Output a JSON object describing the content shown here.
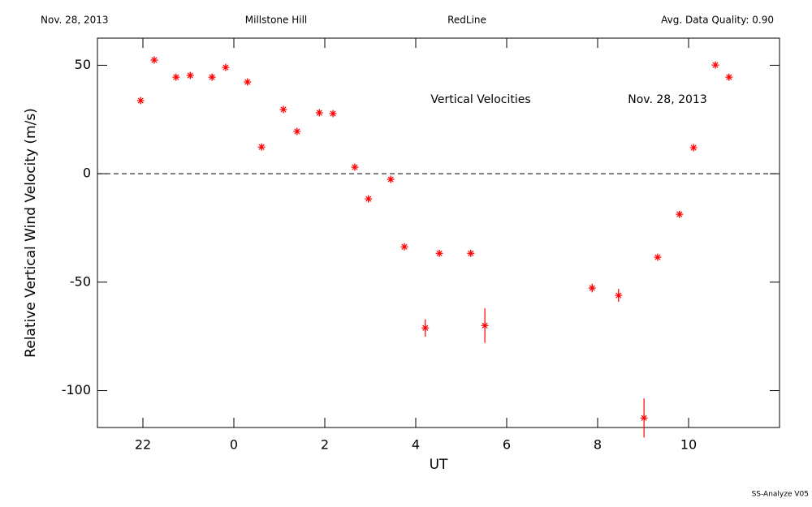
{
  "chart_data": {
    "type": "scatter",
    "header": [
      "Nov. 28, 2013",
      "Millstone Hill",
      "RedLine",
      "Avg. Data Quality: 0.90"
    ],
    "annotations": [
      "Vertical Velocities",
      "Nov. 28, 2013"
    ],
    "footer": "SS-Analyze V05",
    "x_label": "UT",
    "y_label": "Relative Vertical Wind Velocity (m/s)",
    "xlim": [
      -3,
      12
    ],
    "xticks": [
      {
        "value": -2,
        "label": "22"
      },
      0,
      2,
      4,
      6,
      8,
      10
    ],
    "ylim": [
      -117,
      62.5
    ],
    "yticks": [
      50,
      0,
      -50,
      -100
    ],
    "hline": 0,
    "color": "#ff0000",
    "x": [
      -2.05,
      -1.75,
      -1.27,
      -0.96,
      -0.48,
      -0.18,
      0.3,
      0.61,
      1.09,
      1.39,
      1.88,
      2.18,
      2.66,
      2.96,
      3.45,
      3.75,
      4.21,
      4.52,
      5.21,
      5.52,
      7.88,
      8.46,
      9.02,
      9.32,
      9.8,
      10.11,
      10.59,
      10.89
    ],
    "values": [
      33.7,
      52.4,
      44.5,
      45.3,
      44.5,
      49,
      42.3,
      12.3,
      29.6,
      19.5,
      28.1,
      27.7,
      3,
      -11.6,
      -2.6,
      -33.7,
      -71.1,
      -36.7,
      -36.7,
      -70,
      -52.7,
      -56.1,
      -112.6,
      -38.5,
      -18.7,
      12,
      50.1,
      44.5
    ],
    "errors": [
      1.5,
      1.5,
      1.5,
      1.5,
      1.5,
      1.5,
      1.5,
      1.5,
      1.5,
      1.5,
      1.5,
      1.5,
      1.5,
      1.5,
      1.5,
      1.5,
      4,
      1.5,
      1.5,
      8,
      2,
      3,
      9,
      1.5,
      1.5,
      1.5,
      1.5,
      1.5
    ]
  }
}
